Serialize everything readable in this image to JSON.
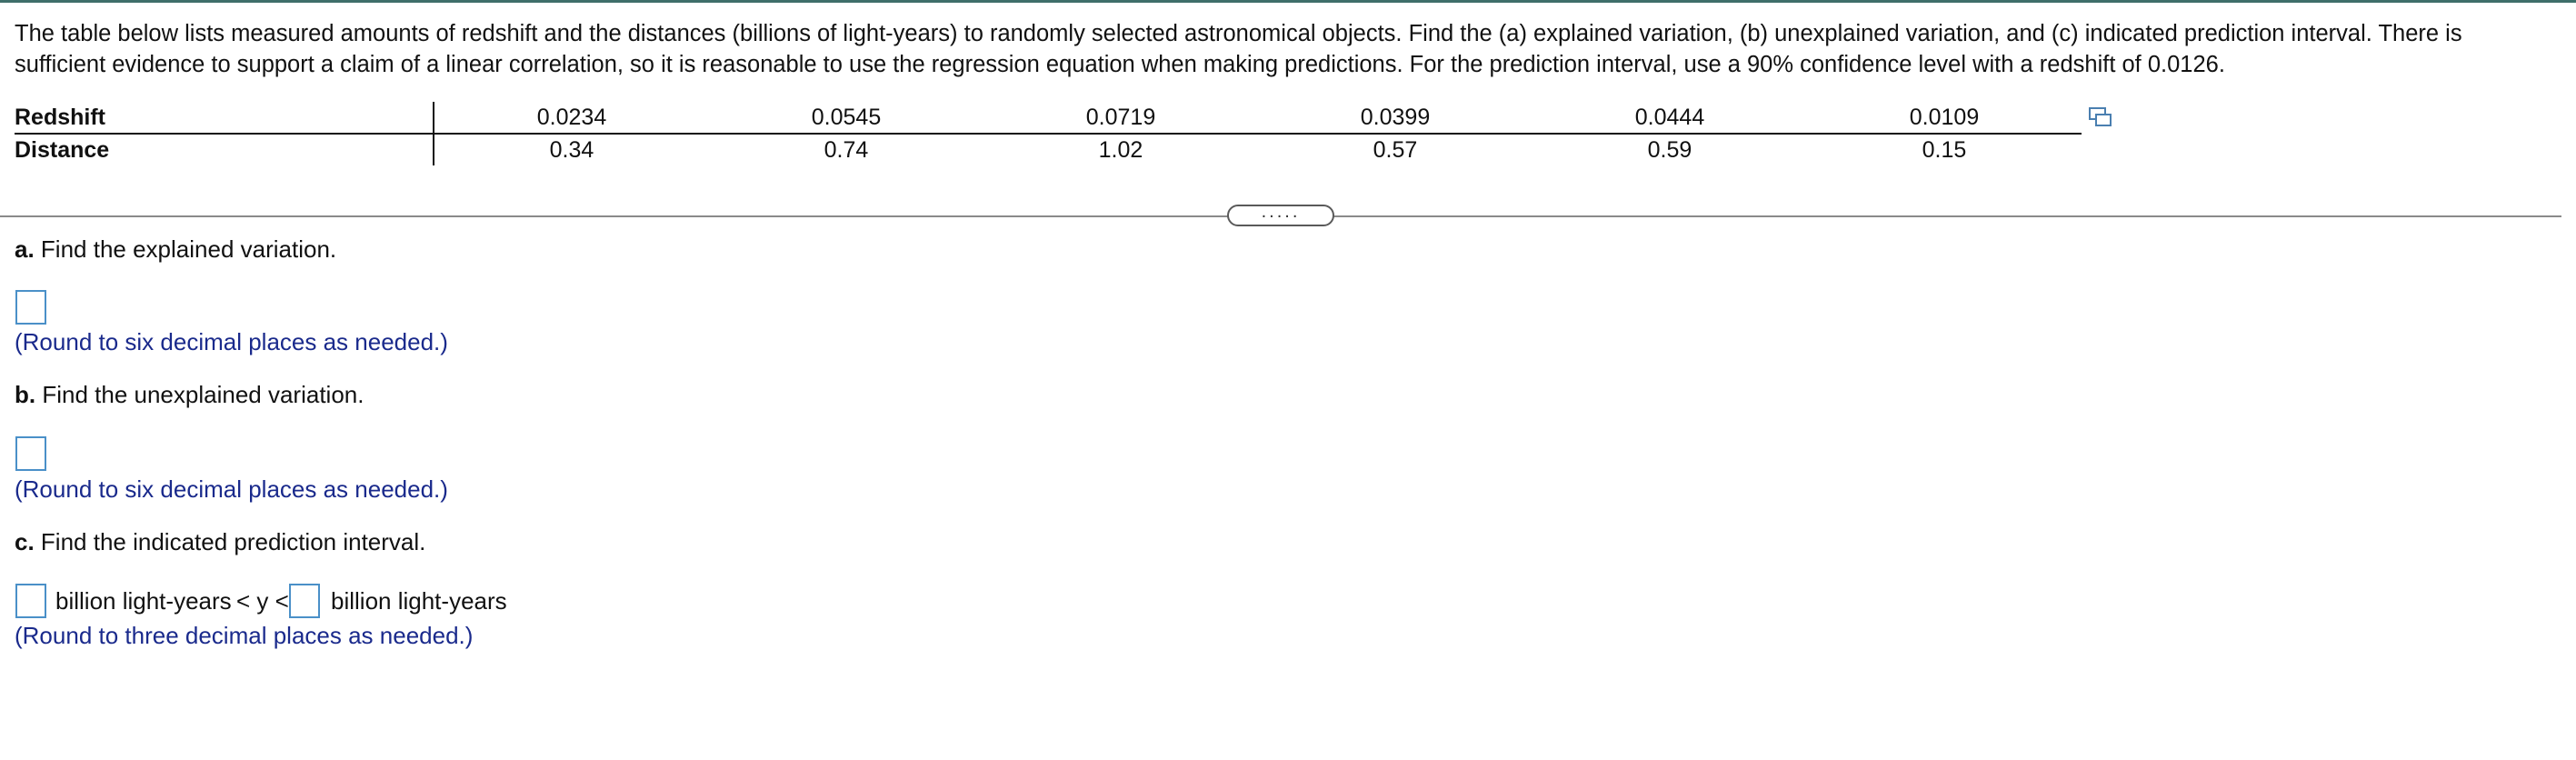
{
  "question": {
    "text": "The table below lists measured amounts of redshift and the distances (billions of light-years) to randomly selected astronomical objects. Find the (a) explained variation, (b) unexplained variation, and (c) indicated prediction interval. There is sufficient evidence to support a claim of a linear correlation, so it is reasonable to use the regression equation when making predictions. For the prediction interval, use a 90% confidence level with a redshift of 0.0126."
  },
  "table": {
    "rows": [
      {
        "label": "Redshift",
        "values": [
          "0.0234",
          "0.0545",
          "0.0719",
          "0.0399",
          "0.0444",
          "0.0109"
        ]
      },
      {
        "label": "Distance",
        "values": [
          "0.34",
          "0.74",
          "1.02",
          "0.57",
          "0.59",
          "0.15"
        ]
      }
    ]
  },
  "expander": {
    "label": "....."
  },
  "parts": {
    "a": {
      "letter": "a.",
      "prompt": "Find the explained variation.",
      "hint": "(Round to six decimal places as needed.)"
    },
    "b": {
      "letter": "b.",
      "prompt": "Find the unexplained variation.",
      "hint": "(Round to six decimal places as needed.)"
    },
    "c": {
      "letter": "c.",
      "prompt": "Find the indicated prediction interval.",
      "unit_left": "billion light-years",
      "inequality": "< y <",
      "unit_right": "billion light-years",
      "hint": "(Round to three decimal places as needed.)"
    }
  },
  "icons": {
    "copy": "copy-data-icon"
  }
}
